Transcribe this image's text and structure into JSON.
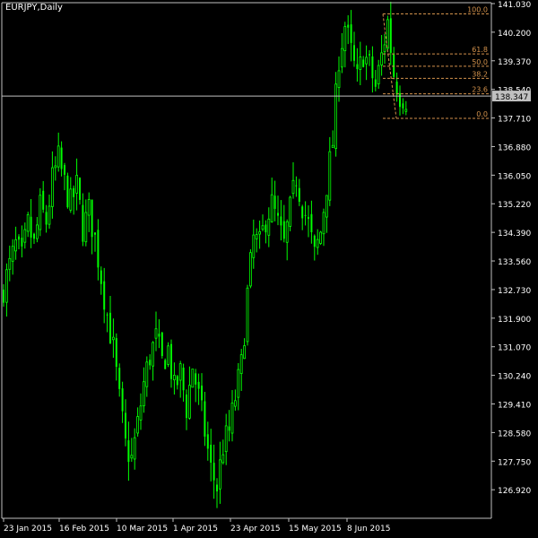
{
  "window": {
    "title": "EURJPY,Daily"
  },
  "chart_data": {
    "type": "candlestick",
    "symbol": "EURJPY",
    "timeframe": "Daily",
    "colors": {
      "background": "#000000",
      "axis": "#c0c0c0",
      "candle": "#00ff00",
      "fib": "#d2914b",
      "current_price_line": "#c0c0c0",
      "current_price_label_bg": "#c0c0c0",
      "text": "#ffffff"
    },
    "ylim": [
      126.3,
      141.03
    ],
    "y_ticks": [
      "141.030",
      "140.200",
      "139.370",
      "138.540",
      "137.710",
      "136.880",
      "136.050",
      "135.220",
      "134.390",
      "133.560",
      "132.730",
      "131.900",
      "131.070",
      "130.240",
      "129.410",
      "128.580",
      "127.750",
      "126.920"
    ],
    "x_ticks": [
      "23 Jan 2015",
      "16 Feb 2015",
      "10 Mar 2015",
      "1 Apr 2015",
      "23 Apr 2015",
      "15 May 2015",
      "8 Jun 2015"
    ],
    "current_price": {
      "value": 138.347,
      "label": "138.347"
    },
    "fibonacci": {
      "high": 140.73,
      "low": 137.7,
      "levels": [
        {
          "label": "100.0",
          "value": 140.73
        },
        {
          "label": "61.8",
          "value": 139.57
        },
        {
          "label": "50.0",
          "value": 139.21
        },
        {
          "label": "38.2",
          "value": 138.86
        },
        {
          "label": "23.6",
          "value": 138.41
        },
        {
          "label": "0.0",
          "value": 137.7
        }
      ]
    },
    "close_path": [
      [
        0,
        132.8
      ],
      [
        2,
        133.4
      ],
      [
        4,
        134.0
      ],
      [
        6,
        133.6
      ],
      [
        8,
        134.6
      ],
      [
        10,
        134.0
      ],
      [
        12,
        135.1
      ],
      [
        14,
        134.7
      ],
      [
        16,
        135.9
      ],
      [
        18,
        136.5
      ],
      [
        20,
        135.8
      ],
      [
        22,
        135.2
      ],
      [
        24,
        135.7
      ],
      [
        26,
        134.5
      ],
      [
        28,
        135.0
      ],
      [
        30,
        134.2
      ],
      [
        32,
        133.1
      ],
      [
        34,
        132.0
      ],
      [
        36,
        131.0
      ],
      [
        38,
        129.5
      ],
      [
        40,
        128.2
      ],
      [
        42,
        127.8
      ],
      [
        44,
        128.8
      ],
      [
        46,
        130.0
      ],
      [
        48,
        130.8
      ],
      [
        50,
        131.3
      ],
      [
        52,
        130.6
      ],
      [
        54,
        131.0
      ],
      [
        56,
        129.8
      ],
      [
        58,
        130.3
      ],
      [
        60,
        129.3
      ],
      [
        62,
        130.5
      ],
      [
        64,
        129.6
      ],
      [
        66,
        128.6
      ],
      [
        68,
        127.5
      ],
      [
        70,
        127.0
      ],
      [
        72,
        128.2
      ],
      [
        74,
        128.6
      ],
      [
        76,
        129.6
      ],
      [
        78,
        130.5
      ],
      [
        80,
        132.6
      ],
      [
        82,
        134.2
      ],
      [
        84,
        134.0
      ],
      [
        86,
        134.8
      ],
      [
        88,
        135.2
      ],
      [
        90,
        134.6
      ],
      [
        92,
        134.0
      ],
      [
        94,
        135.0
      ],
      [
        96,
        136.0
      ],
      [
        98,
        135.2
      ],
      [
        100,
        134.6
      ],
      [
        102,
        133.7
      ],
      [
        104,
        134.4
      ],
      [
        106,
        135.8
      ],
      [
        108,
        137.0
      ],
      [
        110,
        139.5
      ],
      [
        112,
        140.4
      ],
      [
        114,
        139.6
      ],
      [
        116,
        138.8
      ],
      [
        118,
        139.6
      ],
      [
        120,
        139.2
      ],
      [
        122,
        138.6
      ],
      [
        124,
        139.5
      ],
      [
        126,
        140.5
      ],
      [
        128,
        139.0
      ],
      [
        130,
        138.4
      ],
      [
        132,
        138.3
      ]
    ]
  }
}
